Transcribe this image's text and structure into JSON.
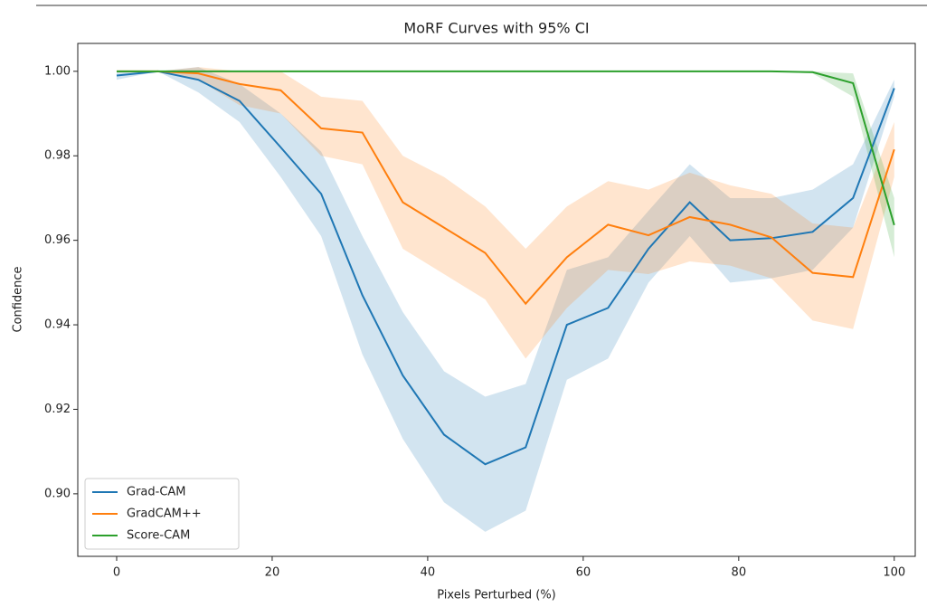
{
  "chart_data": {
    "type": "line",
    "title": "MoRF Curves with 95% CI",
    "xlabel": "Pixels Perturbed (%)",
    "ylabel": "Confidence",
    "x": [
      0,
      5.3,
      10.5,
      15.8,
      21.1,
      26.3,
      31.6,
      36.8,
      42.1,
      47.4,
      52.6,
      57.9,
      63.2,
      68.4,
      73.7,
      78.9,
      84.2,
      89.5,
      94.7,
      100
    ],
    "series": [
      {
        "name": "Grad-CAM",
        "color": "#1f77b4",
        "values": [
          0.999,
          1.0,
          0.998,
          0.993,
          0.982,
          0.971,
          0.947,
          0.928,
          0.914,
          0.907,
          0.911,
          0.94,
          0.944,
          0.958,
          0.969,
          0.96,
          0.9605,
          0.962,
          0.97,
          0.996
        ],
        "lower": [
          0.998,
          1.0,
          0.995,
          0.988,
          0.975,
          0.961,
          0.933,
          0.913,
          0.898,
          0.891,
          0.896,
          0.927,
          0.932,
          0.95,
          0.961,
          0.95,
          0.951,
          0.953,
          0.963,
          0.994
        ],
        "upper": [
          1.0,
          1.0,
          1.001,
          0.997,
          0.99,
          0.981,
          0.961,
          0.943,
          0.929,
          0.923,
          0.926,
          0.953,
          0.956,
          0.967,
          0.978,
          0.97,
          0.97,
          0.972,
          0.978,
          0.998
        ]
      },
      {
        "name": "GradCAM++",
        "color": "#ff7f0e",
        "values": [
          1.0,
          1.0,
          0.9995,
          0.997,
          0.9955,
          0.9865,
          0.9855,
          0.969,
          0.963,
          0.957,
          0.945,
          0.956,
          0.9637,
          0.9612,
          0.9655,
          0.9637,
          0.9607,
          0.9523,
          0.9513,
          0.9815
        ],
        "lower": [
          1.0,
          1.0,
          0.998,
          0.992,
          0.99,
          0.98,
          0.978,
          0.958,
          0.952,
          0.946,
          0.932,
          0.944,
          0.953,
          0.952,
          0.955,
          0.954,
          0.951,
          0.941,
          0.939,
          0.975
        ],
        "upper": [
          1.0,
          1.0,
          1.001,
          1.0,
          1.0,
          0.994,
          0.993,
          0.98,
          0.975,
          0.968,
          0.958,
          0.968,
          0.974,
          0.972,
          0.976,
          0.973,
          0.971,
          0.964,
          0.963,
          0.988
        ]
      },
      {
        "name": "Score-CAM",
        "color": "#2ca02c",
        "values": [
          1.0,
          1.0,
          1.0,
          1.0,
          1.0,
          1.0,
          1.0,
          1.0,
          1.0,
          1.0,
          1.0,
          1.0,
          1.0,
          1.0,
          1.0,
          1.0,
          1.0,
          0.9998,
          0.9972,
          0.9636
        ],
        "lower": [
          1.0,
          1.0,
          1.0,
          1.0,
          1.0,
          1.0,
          1.0,
          1.0,
          1.0,
          1.0,
          1.0,
          1.0,
          1.0,
          1.0,
          1.0,
          1.0,
          1.0,
          0.9995,
          0.994,
          0.956
        ],
        "upper": [
          1.0,
          1.0,
          1.0,
          1.0,
          1.0,
          1.0,
          1.0,
          1.0,
          1.0,
          1.0,
          1.0,
          1.0,
          1.0,
          1.0,
          1.0,
          1.0,
          1.0,
          1.0,
          0.9995,
          0.97
        ]
      }
    ],
    "xlim": [
      -5,
      102.7
    ],
    "ylim": [
      0.8852,
      1.0066
    ],
    "xticks": [
      0,
      20,
      40,
      60,
      80,
      100
    ],
    "yticks": [
      {
        "value": 0.9,
        "label": "0.90"
      },
      {
        "value": 0.92,
        "label": "0.92"
      },
      {
        "value": 0.94,
        "label": "0.94"
      },
      {
        "value": 0.96,
        "label": "0.96"
      },
      {
        "value": 0.98,
        "label": "0.98"
      },
      {
        "value": 1.0,
        "label": "1.00"
      }
    ],
    "legend": "lower left"
  }
}
